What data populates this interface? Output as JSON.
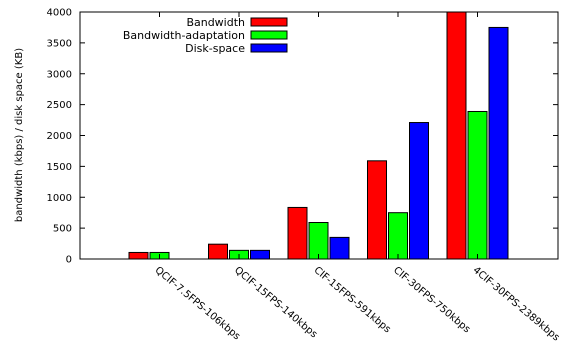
{
  "chart_data": {
    "type": "bar",
    "title": "",
    "xlabel": "",
    "ylabel": "bandwidth (kbps) / disk space (KB)",
    "ylim": [
      0,
      4000
    ],
    "yticks": [
      0,
      500,
      1000,
      1500,
      2000,
      2500,
      3000,
      3500,
      4000
    ],
    "grid": false,
    "legend_position": "top-right",
    "categories": [
      "QCIF-7.5FPS-106kbps",
      "QCIF-15FPS-140kbps",
      "CIF-15FPS-591kbps",
      "CIF-30FPS-750kbps",
      "4CIF-30FPS-2389kbps"
    ],
    "series": [
      {
        "name": "Bandwidth",
        "color": "#ff0000",
        "values": [
          106,
          240,
          835,
          1590,
          4000
        ]
      },
      {
        "name": "Bandwidth-adaptation",
        "color": "#00ff00",
        "values": [
          106,
          140,
          591,
          750,
          2389
        ]
      },
      {
        "name": "Disk-space",
        "color": "#0000ff",
        "values": [
          null,
          140,
          350,
          2210,
          3750
        ]
      }
    ]
  }
}
